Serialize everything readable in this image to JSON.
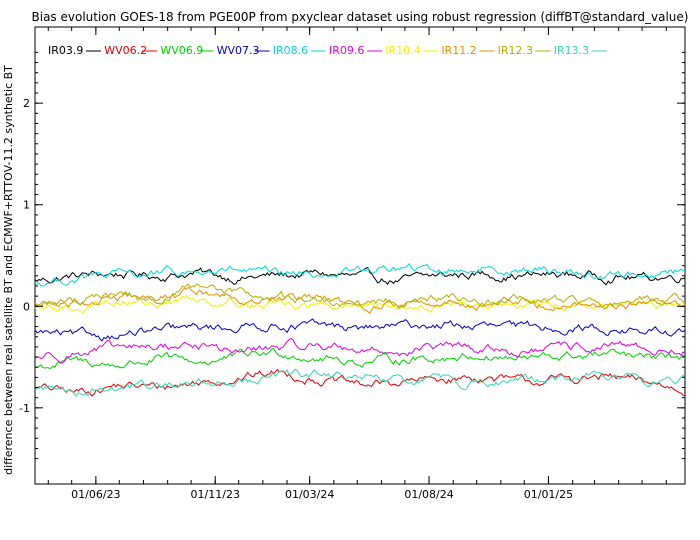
{
  "chart_data": {
    "type": "line",
    "title": "Bias evolution GOES-18 from PGE00P from pxyclear dataset using robust regression (diffBT@standard_value)",
    "ylabel": "difference between real satellite BT and ECMWF+RTTOV-11.2 synthetic BT",
    "xlabel": "",
    "ylim": [
      -1.75,
      2.75
    ],
    "yticks": [
      -1,
      0,
      1,
      2
    ],
    "ytick_labels": [
      "-1",
      "0",
      "1",
      "2"
    ],
    "x_start": "2023-03-15",
    "x_end": "2025-06-25",
    "xticks": [
      "2023-06-01",
      "2023-11-01",
      "2024-03-01",
      "2024-08-01",
      "2025-01-01"
    ],
    "xtick_labels": [
      "01/06/23",
      "01/11/23",
      "01/03/24",
      "01/08/24",
      "01/01/25"
    ],
    "grid": false,
    "legend_position": "top-left",
    "series": [
      {
        "name": "IR03.9",
        "color": "#000000",
        "values": [
          0.25,
          0.3,
          0.32,
          0.3,
          0.33,
          0.28,
          0.3,
          0.32,
          0.28,
          0.25,
          0.3,
          0.32,
          0.3,
          0.31,
          0.3,
          0.28,
          0.3
        ]
      },
      {
        "name": "WV06.2",
        "color": "#e00000",
        "values": [
          -0.8,
          -0.85,
          -0.78,
          -0.8,
          -0.75,
          -0.7,
          -0.65,
          -0.72,
          -0.78,
          -0.75,
          -0.72,
          -0.7,
          -0.75,
          -0.72,
          -0.7,
          -0.75,
          -0.82
        ]
      },
      {
        "name": "WV06.9",
        "color": "#00d000",
        "values": [
          -0.6,
          -0.55,
          -0.58,
          -0.52,
          -0.55,
          -0.5,
          -0.45,
          -0.5,
          -0.55,
          -0.52,
          -0.5,
          -0.48,
          -0.52,
          -0.5,
          -0.48,
          -0.52,
          -0.5
        ]
      },
      {
        "name": "WV07.3",
        "color": "#0000cc",
        "values": [
          -0.25,
          -0.3,
          -0.28,
          -0.25,
          -0.22,
          -0.2,
          -0.18,
          -0.2,
          -0.22,
          -0.2,
          -0.18,
          -0.2,
          -0.22,
          -0.2,
          -0.22,
          -0.25,
          -0.27
        ]
      },
      {
        "name": "IR08.6",
        "color": "#00d8d8",
        "values": [
          0.22,
          0.28,
          0.3,
          0.32,
          0.33,
          0.35,
          0.3,
          0.32,
          0.35,
          0.37,
          0.35,
          0.38,
          0.36,
          0.35,
          0.3,
          0.32,
          0.35
        ]
      },
      {
        "name": "IR09.6",
        "color": "#e000e0",
        "values": [
          -0.5,
          -0.45,
          -0.42,
          -0.4,
          -0.38,
          -0.45,
          -0.4,
          -0.38,
          -0.42,
          -0.45,
          -0.4,
          -0.42,
          -0.45,
          -0.42,
          -0.4,
          -0.42,
          -0.45
        ]
      },
      {
        "name": "IR10.4",
        "color": "#f0f000",
        "values": [
          -0.05,
          0.0,
          0.05,
          0.02,
          0.08,
          0.05,
          0.02,
          0.0,
          -0.02,
          0.0,
          0.02,
          0.0,
          0.02,
          0.0,
          -0.02,
          0.0,
          0.02
        ]
      },
      {
        "name": "IR11.2",
        "color": "#e09000",
        "values": [
          0.0,
          0.05,
          0.1,
          0.05,
          0.15,
          0.1,
          0.05,
          0.05,
          0.0,
          0.03,
          0.05,
          0.02,
          0.05,
          0.02,
          0.0,
          0.02,
          0.05
        ]
      },
      {
        "name": "IR12.3",
        "color": "#b0b000",
        "values": [
          0.02,
          0.06,
          0.12,
          0.08,
          0.17,
          0.12,
          0.08,
          0.06,
          0.02,
          0.05,
          0.07,
          0.04,
          0.07,
          0.04,
          0.02,
          0.04,
          0.06
        ]
      },
      {
        "name": "IR13.3",
        "color": "#30d8b0",
        "values": [
          -0.8,
          -0.82,
          -0.8,
          -0.78,
          -0.75,
          -0.72,
          -0.7,
          -0.68,
          -0.72,
          -0.75,
          -0.72,
          -0.74,
          -0.75,
          -0.72,
          -0.7,
          -0.72,
          -0.72
        ]
      }
    ]
  }
}
